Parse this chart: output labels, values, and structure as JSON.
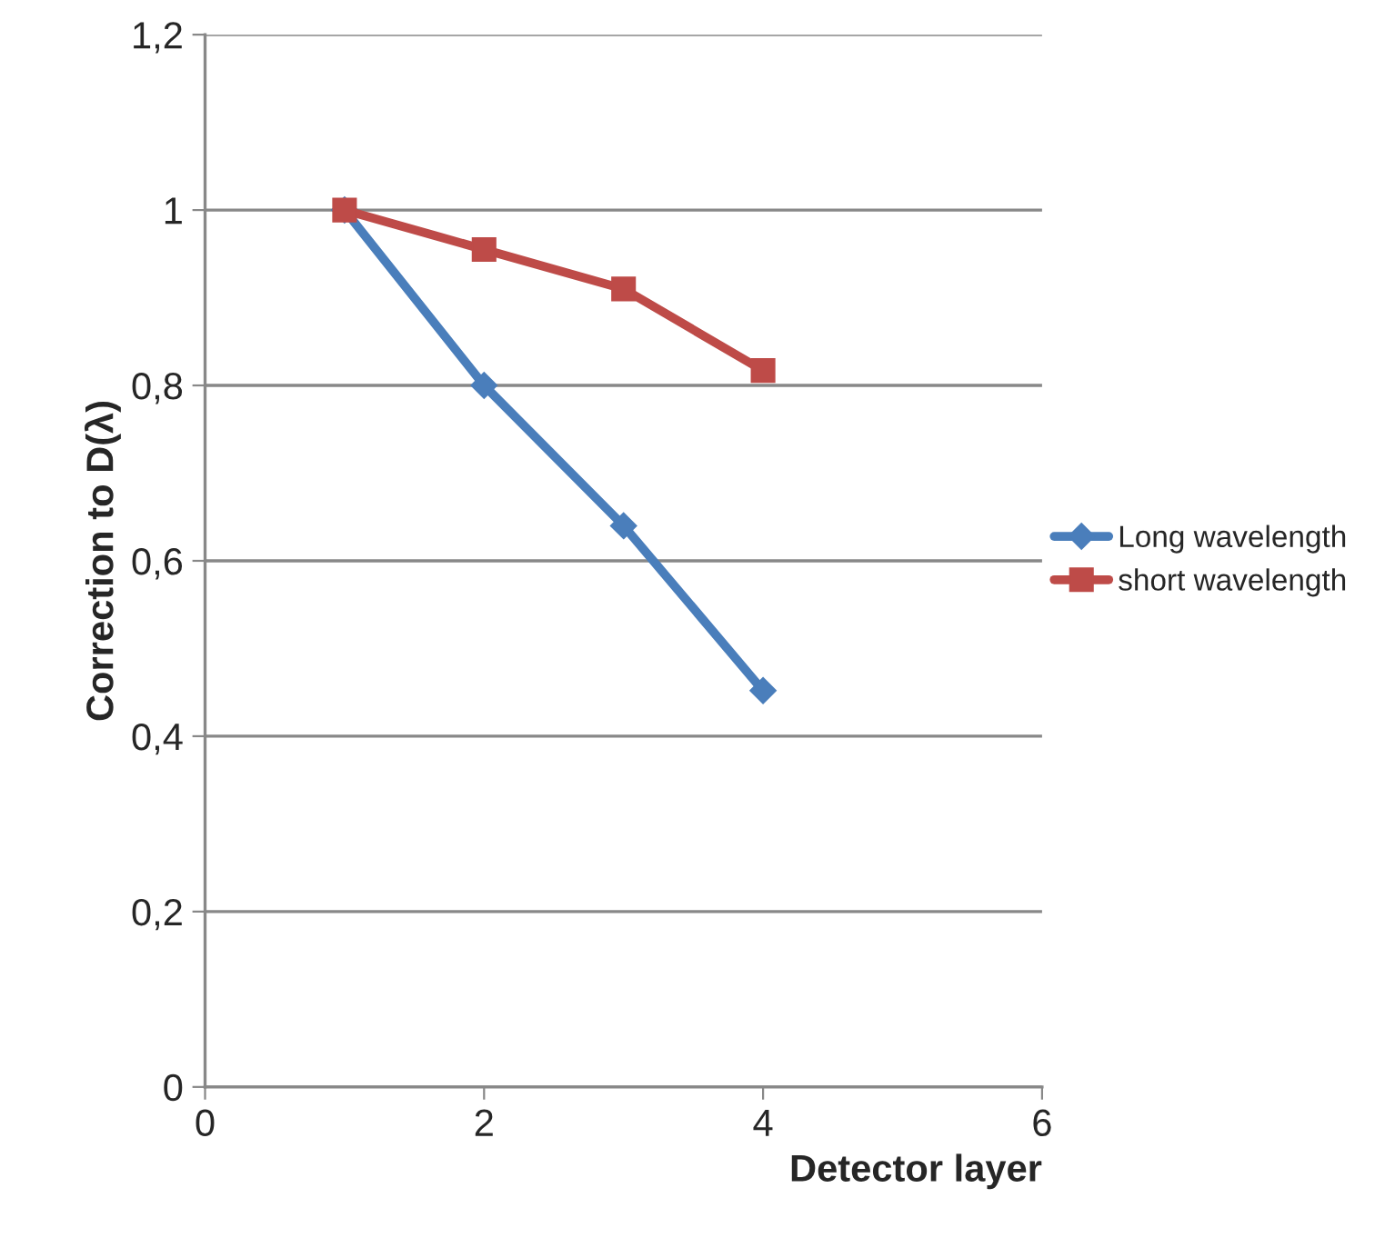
{
  "chart_data": {
    "type": "line",
    "xlabel": "Detector layer",
    "ylabel": "Correction to D(λ)",
    "x": [
      1,
      2,
      3,
      4
    ],
    "series": [
      {
        "name": "Long wavelength",
        "color": "#4a7ebb",
        "marker": "diamond",
        "values": [
          1.0,
          0.8,
          0.64,
          0.452
        ]
      },
      {
        "name": "short wavelength",
        "color": "#be4b48",
        "marker": "square",
        "values": [
          1.0,
          0.955,
          0.91,
          0.817
        ]
      }
    ],
    "xlim": [
      0,
      6
    ],
    "xticks": [
      0,
      2,
      4,
      6
    ],
    "ylim": [
      0,
      1.2
    ],
    "yticks": [
      0,
      {
        "value": 0.2,
        "label": "0,2"
      },
      {
        "value": 0.4,
        "label": "0,4"
      },
      {
        "value": 0.6,
        "label": "0,6"
      },
      {
        "value": 0.8,
        "label": "0,8"
      },
      1,
      {
        "value": 1.2,
        "label": "1,2"
      }
    ],
    "grid": "y",
    "legend": "right"
  }
}
